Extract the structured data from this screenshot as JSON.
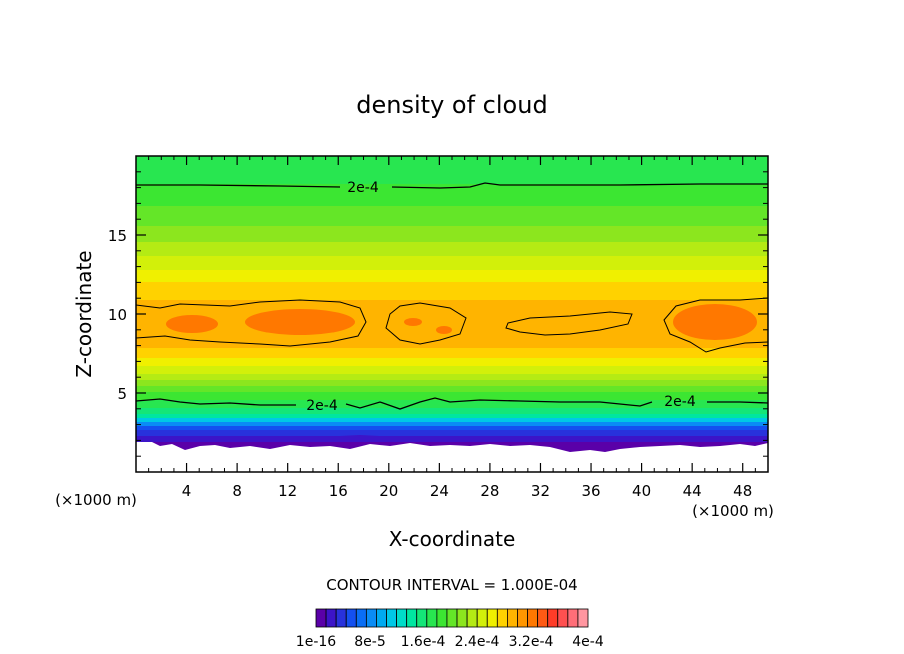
{
  "chart_data": {
    "type": "heatmap",
    "title": "density of cloud",
    "xlabel": "X-coordinate",
    "ylabel": "Z-coordinate",
    "x_unit": "(×1000 m)",
    "y_unit": "(×1000 m)",
    "xlim": [
      0,
      50
    ],
    "ylim": [
      0,
      20
    ],
    "xticks": [
      4,
      8,
      12,
      16,
      20,
      24,
      28,
      32,
      36,
      40,
      44,
      48
    ],
    "yticks": [
      5,
      10,
      15
    ],
    "contour_interval_text": "CONTOUR INTERVAL = 1.000E-04",
    "contour_labels": [
      {
        "text": "2e-4",
        "x": 17.5,
        "y": 18.0
      },
      {
        "text": "2e-4",
        "x": 14.8,
        "y": 4.3
      },
      {
        "text": "2e-4",
        "x": 43.0,
        "y": 4.5
      }
    ],
    "colorbar": {
      "tick_labels": [
        "1e-16",
        "8e-5",
        "1.6e-4",
        "2.4e-4",
        "3.2e-4",
        "4e-4"
      ],
      "colors": [
        "#5a00a8",
        "#3c14c8",
        "#2832dc",
        "#1450f0",
        "#0a6ef5",
        "#0a8cf5",
        "#00aaf0",
        "#00c8e6",
        "#00dcc8",
        "#00e6a0",
        "#14e678",
        "#28e650",
        "#3ce632",
        "#64e628",
        "#8ce61e",
        "#b4eb14",
        "#d2f00a",
        "#f0f000",
        "#ffd200",
        "#ffb400",
        "#ff9600",
        "#ff7800",
        "#ff5a14",
        "#ff3c28",
        "#ff5050",
        "#ff6e78",
        "#ff96a0"
      ]
    },
    "grid": false,
    "legend": "bottom-center"
  }
}
